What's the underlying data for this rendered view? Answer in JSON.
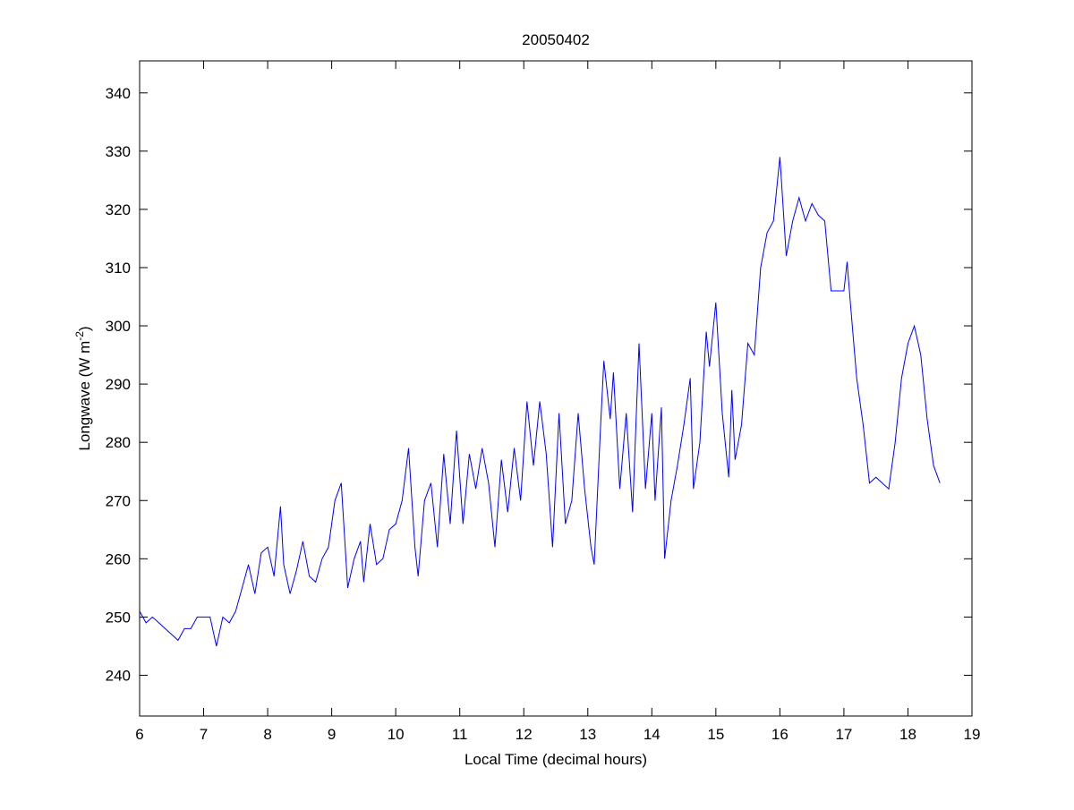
{
  "chart_data": {
    "type": "line",
    "title": "20050402",
    "xlabel": "Local Time (decimal hours)",
    "ylabel": "Longwave (W m",
    "ylabel_sup": "-2",
    "ylabel_close": ")",
    "xlim": [
      6,
      19
    ],
    "ylim": [
      233,
      345.5
    ],
    "xticks": [
      6,
      7,
      8,
      9,
      10,
      11,
      12,
      13,
      14,
      15,
      16,
      17,
      18,
      19
    ],
    "yticks": [
      240,
      250,
      260,
      270,
      280,
      290,
      300,
      310,
      320,
      330,
      340
    ],
    "grid": false,
    "line_color": "#0000ff",
    "series": [
      {
        "name": "Longwave",
        "x": [
          6.0,
          6.1,
          6.2,
          6.3,
          6.4,
          6.5,
          6.6,
          6.7,
          6.8,
          6.9,
          7.0,
          7.1,
          7.2,
          7.3,
          7.4,
          7.5,
          7.6,
          7.7,
          7.8,
          7.9,
          8.0,
          8.1,
          8.2,
          8.25,
          8.35,
          8.45,
          8.55,
          8.65,
          8.75,
          8.85,
          8.95,
          9.05,
          9.15,
          9.25,
          9.35,
          9.45,
          9.5,
          9.6,
          9.7,
          9.8,
          9.9,
          10.0,
          10.1,
          10.2,
          10.3,
          10.35,
          10.45,
          10.55,
          10.65,
          10.75,
          10.85,
          10.95,
          11.05,
          11.15,
          11.25,
          11.35,
          11.45,
          11.55,
          11.65,
          11.75,
          11.85,
          11.95,
          12.05,
          12.15,
          12.25,
          12.35,
          12.45,
          12.55,
          12.65,
          12.75,
          12.85,
          12.95,
          13.05,
          13.1,
          13.2,
          13.25,
          13.35,
          13.4,
          13.5,
          13.6,
          13.7,
          13.8,
          13.9,
          14.0,
          14.05,
          14.15,
          14.2,
          14.3,
          14.4,
          14.5,
          14.6,
          14.65,
          14.75,
          14.85,
          14.9,
          15.0,
          15.1,
          15.2,
          15.25,
          15.3,
          15.4,
          15.5,
          15.6,
          15.7,
          15.8,
          15.9,
          16.0,
          16.1,
          16.2,
          16.3,
          16.4,
          16.5,
          16.6,
          16.7,
          16.8,
          16.9,
          17.0,
          17.05,
          17.1,
          17.2,
          17.3,
          17.4,
          17.5,
          17.6,
          17.7,
          17.8,
          17.9,
          18.0,
          18.1,
          18.2,
          18.3,
          18.4,
          18.5
        ],
        "y": [
          251,
          249,
          250,
          249,
          248,
          247,
          246,
          248,
          248,
          250,
          250,
          250,
          245,
          250,
          249,
          251,
          255,
          259,
          254,
          261,
          262,
          257,
          269,
          259,
          254,
          258,
          263,
          257,
          256,
          260,
          262,
          270,
          273,
          255,
          260,
          263,
          256,
          266,
          259,
          260,
          265,
          266,
          270,
          279,
          262,
          257,
          270,
          273,
          262,
          278,
          266,
          282,
          266,
          278,
          272,
          279,
          273,
          262,
          277,
          268,
          279,
          270,
          287,
          276,
          287,
          278,
          262,
          285,
          266,
          270,
          285,
          272,
          262,
          259,
          283,
          294,
          284,
          292,
          272,
          285,
          268,
          297,
          272,
          285,
          270,
          286,
          260,
          270,
          276,
          283,
          291,
          272,
          280,
          299,
          293,
          304,
          285,
          274,
          289,
          277,
          283,
          297,
          295,
          310,
          316,
          318,
          329,
          312,
          318,
          322,
          318,
          321,
          319,
          318,
          306,
          306,
          306,
          311,
          304,
          291,
          283,
          273,
          274,
          273,
          272,
          280,
          291,
          297,
          300,
          295,
          284,
          276,
          273
        ]
      }
    ]
  }
}
